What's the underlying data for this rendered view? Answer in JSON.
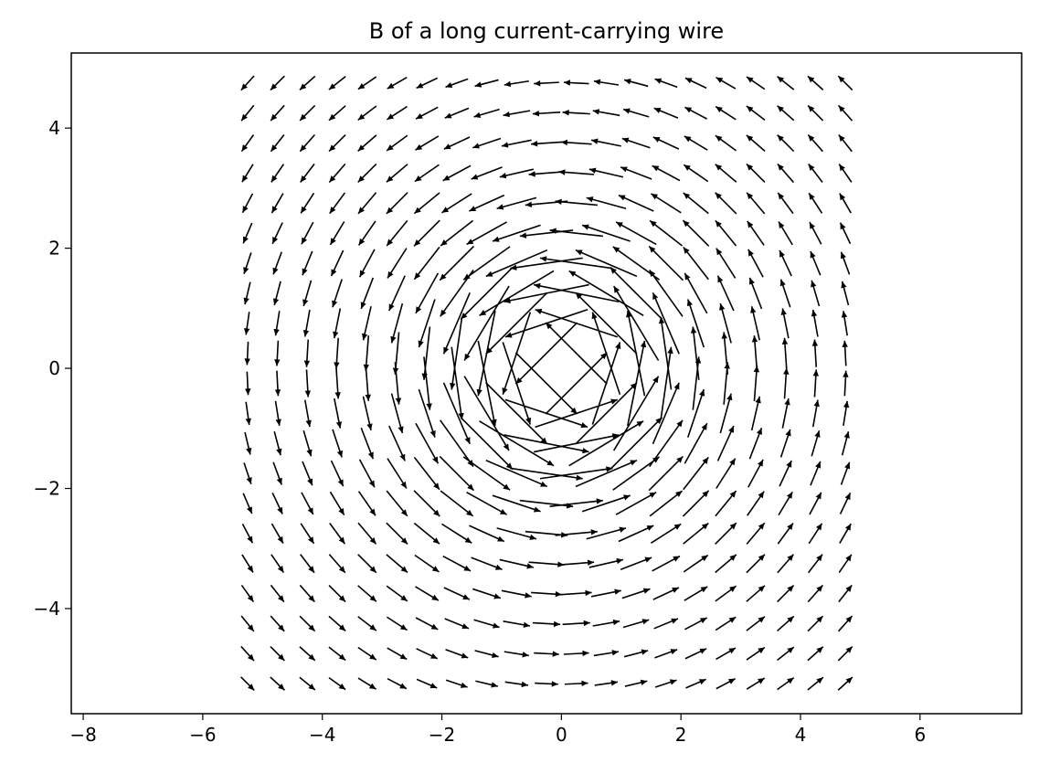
{
  "chart_data": {
    "type": "quiver",
    "title": "B of a long current-carrying wire",
    "xlabel": "",
    "ylabel": "",
    "xlim": [
      -8.2,
      7.7
    ],
    "ylim": [
      -5.75,
      5.25
    ],
    "xticks": [
      -8,
      -6,
      -4,
      -2,
      0,
      2,
      4,
      6
    ],
    "yticks": [
      -4,
      -2,
      0,
      2,
      4
    ],
    "xtick_labels": [
      "−8",
      "−6",
      "−4",
      "−2",
      "0",
      "2",
      "4",
      "6"
    ],
    "ytick_labels": [
      "−4",
      "−2",
      "0",
      "2",
      "4"
    ],
    "grid": false,
    "legend": "none",
    "field": {
      "description": "azimuthal field around a wire at the origin, counter-clockwise",
      "x_range": [
        -5.25,
        4.75
      ],
      "y_range": [
        -5.25,
        4.75
      ],
      "grid_n": 21,
      "arrow_color": "#000000"
    }
  }
}
